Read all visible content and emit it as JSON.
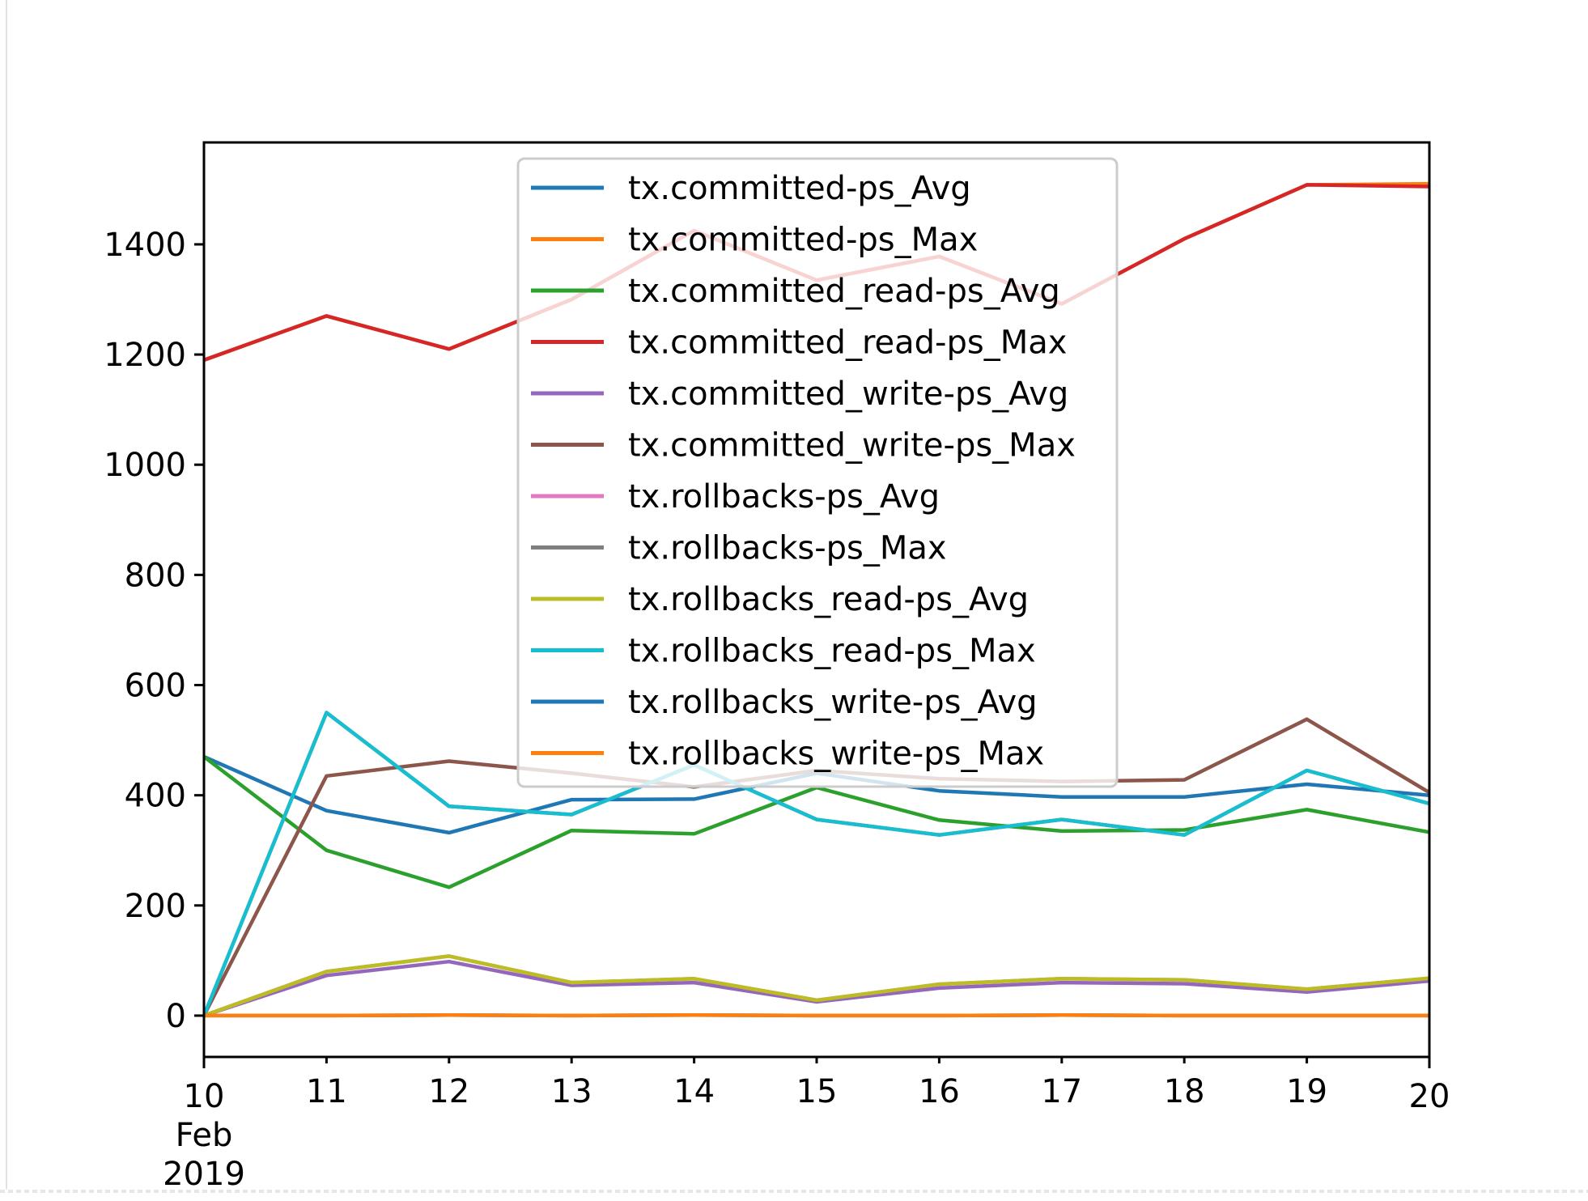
{
  "chart_data": {
    "type": "line",
    "x": [
      "10\nFeb\n2019",
      "11",
      "12",
      "13",
      "14",
      "15",
      "16",
      "17",
      "18",
      "19",
      "20"
    ],
    "x_values": [
      10,
      11,
      12,
      13,
      14,
      15,
      16,
      17,
      18,
      19,
      20
    ],
    "xlim": [
      10,
      20
    ],
    "ylim": [
      -75,
      1585
    ],
    "yticks": [
      0,
      200,
      400,
      600,
      800,
      1000,
      1200,
      1400
    ],
    "title": "",
    "xlabel": "",
    "ylabel": "",
    "grid": false,
    "legend_position": "upper center",
    "series": [
      {
        "name": "tx.committed-ps_Avg",
        "color": "#1f77b4",
        "values": [
          470,
          372,
          332,
          392,
          393,
          440,
          408,
          397,
          397,
          420,
          400
        ]
      },
      {
        "name": "tx.committed-ps_Max",
        "color": "#ff7f0e",
        "values": [
          1190,
          1270,
          1210,
          1300,
          1425,
          1335,
          1378,
          1292,
          1410,
          1508,
          1510
        ]
      },
      {
        "name": "tx.committed_read-ps_Avg",
        "color": "#2ca02c",
        "values": [
          470,
          300,
          233,
          336,
          330,
          414,
          355,
          335,
          337,
          374,
          333
        ]
      },
      {
        "name": "tx.committed_read-ps_Max",
        "color": "#d62728",
        "values": [
          1190,
          1270,
          1210,
          1300,
          1425,
          1335,
          1378,
          1292,
          1410,
          1508,
          1505
        ]
      },
      {
        "name": "tx.committed_write-ps_Avg",
        "color": "#9467bd",
        "values": [
          0,
          73,
          98,
          55,
          60,
          25,
          50,
          60,
          58,
          43,
          63
        ]
      },
      {
        "name": "tx.committed_write-ps_Max",
        "color": "#8c564b",
        "values": [
          0,
          435,
          462,
          440,
          415,
          445,
          430,
          425,
          428,
          538,
          405
        ]
      },
      {
        "name": "tx.rollbacks-ps_Avg",
        "color": "#e377c2",
        "values": [
          0,
          80,
          108,
          60,
          67,
          28,
          57,
          67,
          65,
          48,
          68
        ]
      },
      {
        "name": "tx.rollbacks-ps_Max",
        "color": "#7f7f7f",
        "values": [
          0,
          550,
          380,
          365,
          455,
          356,
          328,
          356,
          328,
          445,
          385
        ]
      },
      {
        "name": "tx.rollbacks_read-ps_Avg",
        "color": "#bcbd22",
        "values": [
          0,
          80,
          108,
          60,
          67,
          28,
          57,
          67,
          65,
          48,
          68
        ]
      },
      {
        "name": "tx.rollbacks_read-ps_Max",
        "color": "#17becf",
        "values": [
          0,
          550,
          380,
          365,
          455,
          356,
          328,
          356,
          328,
          445,
          385
        ]
      },
      {
        "name": "tx.rollbacks_write-ps_Avg",
        "color": "#1f77b4",
        "values": [
          0,
          0,
          1,
          0,
          1,
          0,
          0,
          1,
          0,
          0,
          0
        ]
      },
      {
        "name": "tx.rollbacks_write-ps_Max",
        "color": "#ff7f0e",
        "values": [
          0,
          0,
          1,
          0,
          1,
          0,
          0,
          1,
          0,
          0,
          0
        ]
      }
    ]
  }
}
